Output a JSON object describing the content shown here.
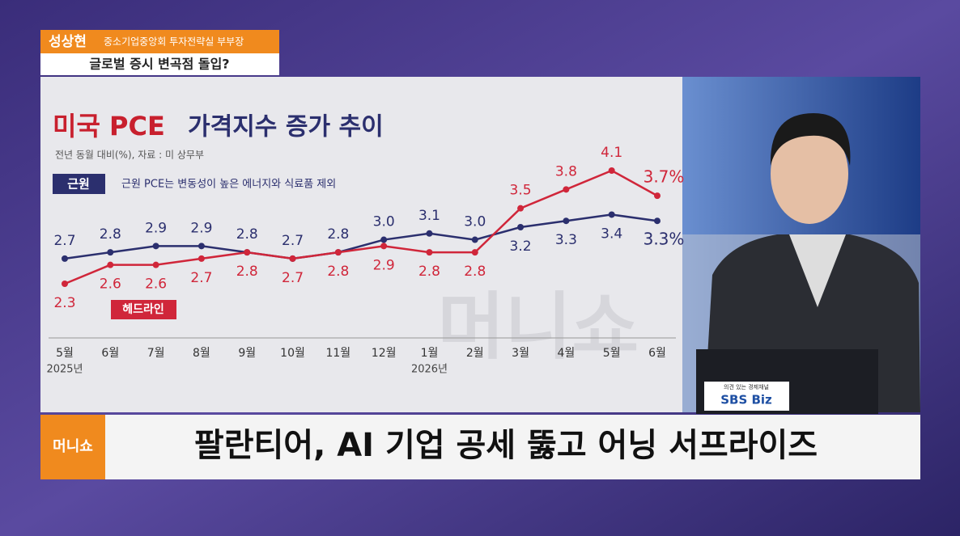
{
  "lower_third": {
    "name": "성상현",
    "affiliation": "중소기업중앙회 투자전략실 부부장",
    "topic": "글로벌 증시 변곡점 돌입?"
  },
  "chart_data": {
    "type": "line",
    "title": [
      "미국 PCE",
      "가격지수 증가 추이"
    ],
    "subtitle": "전년 동월 대비(%), 자료 : 미 상무부",
    "legend_note": "근원 PCE는 변동성이 높은 에너지와 식료품 제외",
    "categories": [
      "5월",
      "6월",
      "7월",
      "8월",
      "9월",
      "10월",
      "11월",
      "12월",
      "1월",
      "2월",
      "3월",
      "4월",
      "5월",
      "6월"
    ],
    "category_years": [
      "2025년",
      null,
      null,
      null,
      null,
      null,
      null,
      null,
      "2026년",
      null,
      null,
      null,
      null,
      null
    ],
    "series": [
      {
        "name": "근원",
        "color": "#2b2f6e",
        "values": [
          2.7,
          2.8,
          2.9,
          2.9,
          2.8,
          2.7,
          2.8,
          3.0,
          3.1,
          3.0,
          3.2,
          3.3,
          3.4,
          3.3
        ],
        "value_labels": [
          "2.7",
          "2.8",
          "2.9",
          "2.9",
          "2.8",
          "2.7",
          "2.8",
          "3.0",
          "3.1",
          "3.0",
          "3.2",
          "3.3",
          "3.4",
          "3.3%"
        ]
      },
      {
        "name": "헤드라인",
        "color": "#d0263a",
        "values": [
          2.3,
          2.6,
          2.6,
          2.7,
          2.8,
          2.7,
          2.8,
          2.9,
          2.8,
          2.8,
          3.5,
          3.8,
          4.1,
          3.7
        ],
        "value_labels": [
          "2.3",
          "2.6",
          "2.6",
          "2.7",
          "2.8",
          "2.7",
          "2.8",
          "2.9",
          "2.8",
          "2.8",
          "3.5",
          "3.8",
          "4.1",
          "3.7%"
        ]
      }
    ]
  },
  "video": {
    "tagline": "의견 있는 경제채널",
    "brand": "SBS Biz"
  },
  "headline_bar": {
    "logo": "머니쇼",
    "text": "팔란티어, AI 기업 공세 뚫고 어닝 서프라이즈"
  }
}
